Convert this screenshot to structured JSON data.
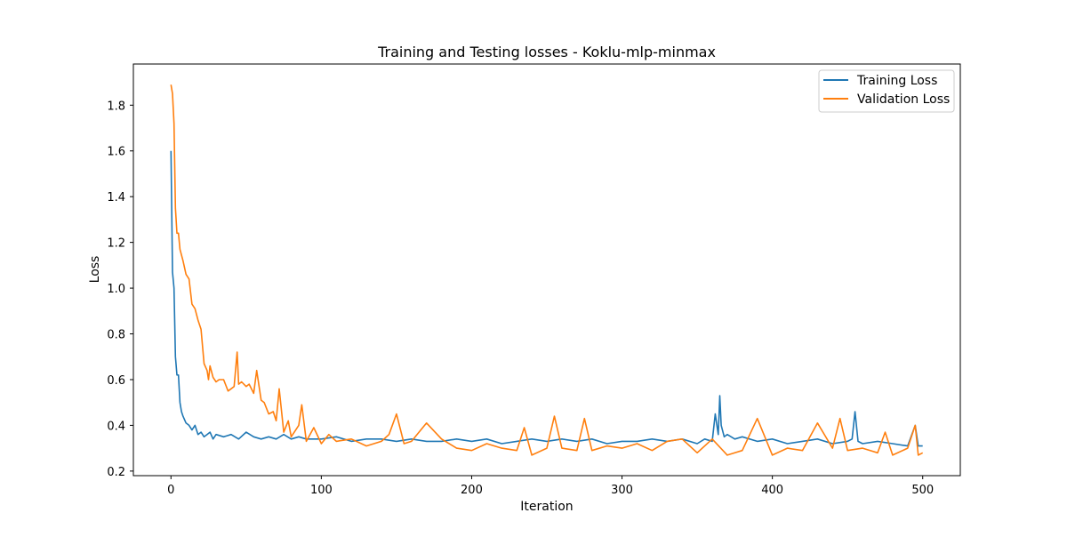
{
  "chart_data": {
    "type": "line",
    "title": "Training and Testing losses - Koklu-mlp-minmax",
    "xlabel": "Iteration",
    "ylabel": "Loss",
    "xlim": [
      -25,
      525
    ],
    "ylim": [
      0.18,
      1.98
    ],
    "xticks": [
      0,
      100,
      200,
      300,
      400,
      500
    ],
    "yticks": [
      0.2,
      0.4,
      0.6,
      0.8,
      1.0,
      1.2,
      1.4,
      1.6,
      1.8
    ],
    "ytick_labels": [
      "0.2",
      "0.4",
      "0.6",
      "0.8",
      "1.0",
      "1.2",
      "1.4",
      "1.6",
      "1.8"
    ],
    "legend_position": "top-right",
    "grid": false,
    "series": [
      {
        "name": "Training Loss",
        "color": "#1f77b4",
        "x": [
          0,
          1,
          2,
          3,
          4,
          5,
          6,
          7,
          8,
          10,
          12,
          14,
          16,
          18,
          20,
          22,
          24,
          26,
          28,
          30,
          35,
          40,
          45,
          50,
          55,
          60,
          65,
          70,
          75,
          80,
          85,
          90,
          95,
          100,
          110,
          120,
          130,
          140,
          150,
          160,
          170,
          180,
          190,
          200,
          210,
          220,
          230,
          240,
          250,
          260,
          270,
          280,
          290,
          300,
          310,
          320,
          330,
          340,
          350,
          355,
          360,
          362,
          364,
          365,
          366,
          368,
          370,
          375,
          380,
          390,
          400,
          410,
          420,
          430,
          440,
          450,
          453,
          455,
          457,
          460,
          470,
          480,
          490,
          495,
          497,
          500
        ],
        "y": [
          1.6,
          1.07,
          1.0,
          0.7,
          0.62,
          0.62,
          0.5,
          0.46,
          0.44,
          0.41,
          0.4,
          0.38,
          0.4,
          0.36,
          0.37,
          0.35,
          0.36,
          0.37,
          0.34,
          0.36,
          0.35,
          0.36,
          0.34,
          0.37,
          0.35,
          0.34,
          0.35,
          0.34,
          0.36,
          0.34,
          0.35,
          0.34,
          0.34,
          0.34,
          0.35,
          0.33,
          0.34,
          0.34,
          0.33,
          0.34,
          0.33,
          0.33,
          0.34,
          0.33,
          0.34,
          0.32,
          0.33,
          0.34,
          0.33,
          0.34,
          0.33,
          0.34,
          0.32,
          0.33,
          0.33,
          0.34,
          0.33,
          0.34,
          0.32,
          0.34,
          0.33,
          0.45,
          0.36,
          0.53,
          0.4,
          0.35,
          0.36,
          0.34,
          0.35,
          0.33,
          0.34,
          0.32,
          0.33,
          0.34,
          0.32,
          0.33,
          0.34,
          0.46,
          0.33,
          0.32,
          0.33,
          0.32,
          0.31,
          0.4,
          0.31,
          0.31
        ]
      },
      {
        "name": "Validation Loss",
        "color": "#ff7f0e",
        "x": [
          0,
          1,
          2,
          3,
          4,
          5,
          6,
          8,
          10,
          12,
          14,
          16,
          18,
          20,
          22,
          24,
          25,
          26,
          28,
          30,
          32,
          35,
          38,
          40,
          42,
          44,
          45,
          47,
          50,
          52,
          55,
          57,
          60,
          62,
          65,
          68,
          70,
          72,
          75,
          78,
          80,
          85,
          87,
          90,
          95,
          100,
          105,
          110,
          120,
          130,
          140,
          145,
          150,
          155,
          160,
          170,
          180,
          190,
          200,
          210,
          220,
          230,
          235,
          240,
          250,
          255,
          260,
          270,
          275,
          280,
          290,
          300,
          310,
          320,
          330,
          340,
          350,
          360,
          370,
          380,
          390,
          400,
          410,
          420,
          430,
          440,
          445,
          450,
          460,
          470,
          475,
          480,
          490,
          495,
          497,
          500
        ],
        "y": [
          1.89,
          1.85,
          1.72,
          1.35,
          1.24,
          1.24,
          1.17,
          1.12,
          1.06,
          1.04,
          0.93,
          0.91,
          0.86,
          0.82,
          0.67,
          0.64,
          0.6,
          0.66,
          0.61,
          0.59,
          0.6,
          0.6,
          0.55,
          0.56,
          0.57,
          0.72,
          0.58,
          0.59,
          0.57,
          0.58,
          0.54,
          0.64,
          0.51,
          0.5,
          0.45,
          0.46,
          0.42,
          0.56,
          0.37,
          0.42,
          0.35,
          0.4,
          0.49,
          0.33,
          0.39,
          0.32,
          0.36,
          0.33,
          0.34,
          0.31,
          0.33,
          0.36,
          0.45,
          0.32,
          0.33,
          0.41,
          0.34,
          0.3,
          0.29,
          0.32,
          0.3,
          0.29,
          0.39,
          0.27,
          0.3,
          0.44,
          0.3,
          0.29,
          0.43,
          0.29,
          0.31,
          0.3,
          0.32,
          0.29,
          0.33,
          0.34,
          0.28,
          0.34,
          0.27,
          0.29,
          0.43,
          0.27,
          0.3,
          0.29,
          0.41,
          0.3,
          0.43,
          0.29,
          0.3,
          0.28,
          0.37,
          0.27,
          0.3,
          0.4,
          0.27,
          0.28
        ]
      }
    ]
  }
}
